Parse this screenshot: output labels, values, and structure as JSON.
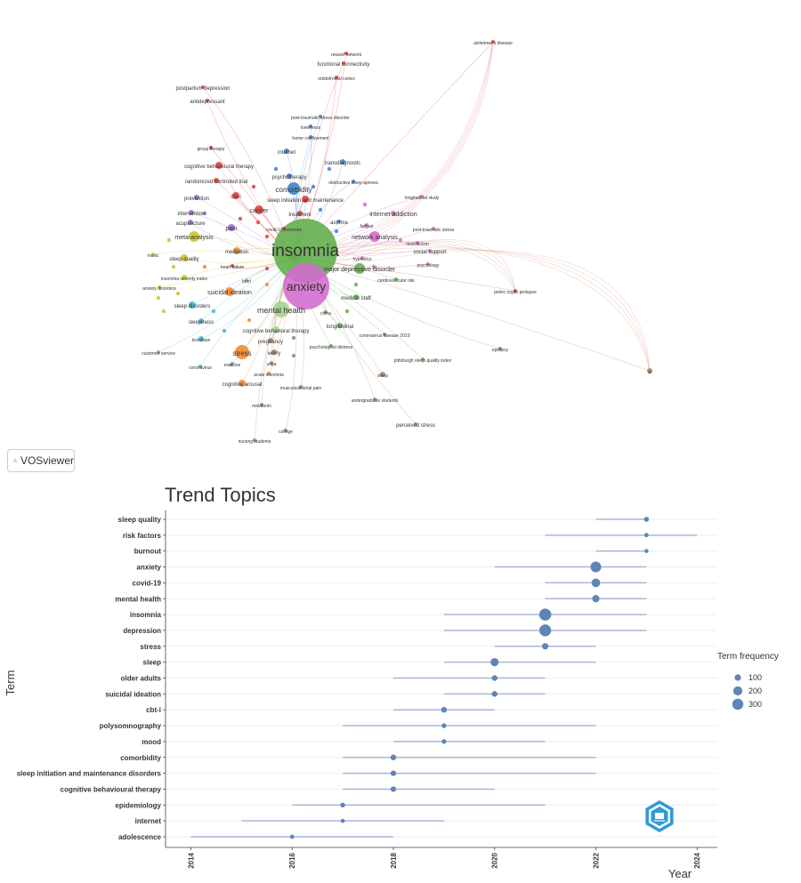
{
  "network": {
    "brand": "VOSviewer",
    "clusters": {
      "red": "#e63b3b",
      "green": "#5fae4a",
      "blue": "#3f7fcc",
      "pink": "#d46ad0",
      "yellow": "#c9c428",
      "purple": "#9a6ad6",
      "cyan": "#43b5d6",
      "orange": "#ef8a2c",
      "brown": "#a8836b",
      "lightgreen": "#9fd48a"
    },
    "labels": [
      "insomnia",
      "anxiety",
      "mental health",
      "comorbidity",
      "network analysis",
      "major depressive disorder",
      "meta-analysis",
      "stress",
      "sleep quality",
      "sleep disorders",
      "suicidal ideation",
      "cancer",
      "cbt-i",
      "internet",
      "pain",
      "mediation",
      "cognitive behavioural therapy",
      "randomized controlled trial",
      "prevention",
      "intervention",
      "acupuncture",
      "insomnia severity index",
      "sleepiness",
      "lockdown",
      "cognitive behavioral therapy",
      "pregnancy",
      "worry",
      "cognitive arousal",
      "melatonin",
      "college",
      "nursing students",
      "exercise",
      "yoga",
      "acute insomnia",
      "coronavirus",
      "customer service",
      "music",
      "anxiety disorders",
      "heart failure",
      "bdnf",
      "sleep initiation and maintenance",
      "psychotherapy",
      "obstructive sleep apnoea",
      "transdiagnostic",
      "home confinement",
      "loneliness",
      "post-traumatic stress disorder",
      "orbitofrontal cortex",
      "functional connectivity",
      "reward network",
      "alzheimer's disease",
      "postpartum depression",
      "antidepressant",
      "group therapy",
      "longitudinal study",
      "internet addiction",
      "post-traumatic stress",
      "neuroticism",
      "social support",
      "psychology",
      "cardiovascular risk",
      "pelvic organ prolapse",
      "medical staff",
      "china",
      "longitudinal",
      "coronavirus disease 2019",
      "psychological distress",
      "pittsburgh sleep quality index",
      "epilepsy",
      "undergraduate students",
      "perceived stress",
      "musculoskeletal pain",
      "treatment",
      "asthma",
      "covid-19 insomnia",
      "hypnotics",
      "fatigue",
      "sleep",
      "ai"
    ]
  },
  "chart_data": {
    "type": "scatter",
    "title": "Trend Topics",
    "xlabel": "Year",
    "ylabel": "Term",
    "xlim": [
      2013.5,
      2024.4
    ],
    "xticks": [
      2014,
      2016,
      2018,
      2020,
      2022,
      2024
    ],
    "point_color": "#5f84b8",
    "line_color": "#aab6da",
    "terms": [
      {
        "term": "sleep quality",
        "q1": 2022,
        "median": 2023,
        "q3": 2023,
        "freq": 60
      },
      {
        "term": "risk factors",
        "q1": 2021,
        "median": 2023,
        "q3": 2024,
        "freq": 45
      },
      {
        "term": "burnout",
        "q1": 2022,
        "median": 2023,
        "q3": 2023,
        "freq": 40
      },
      {
        "term": "anxiety",
        "q1": 2020,
        "median": 2022,
        "q3": 2023,
        "freq": 280
      },
      {
        "term": "covid-19",
        "q1": 2021,
        "median": 2022,
        "q3": 2023,
        "freq": 180
      },
      {
        "term": "mental health",
        "q1": 2021,
        "median": 2022,
        "q3": 2023,
        "freq": 130
      },
      {
        "term": "insomnia",
        "q1": 2019,
        "median": 2021,
        "q3": 2023,
        "freq": 350
      },
      {
        "term": "depression",
        "q1": 2019,
        "median": 2021,
        "q3": 2023,
        "freq": 340
      },
      {
        "term": "stress",
        "q1": 2020,
        "median": 2021,
        "q3": 2022,
        "freq": 100
      },
      {
        "term": "sleep",
        "q1": 2019,
        "median": 2020,
        "q3": 2022,
        "freq": 160
      },
      {
        "term": "older adults",
        "q1": 2018,
        "median": 2020,
        "q3": 2021,
        "freq": 80
      },
      {
        "term": "suicidal ideation",
        "q1": 2019,
        "median": 2020,
        "q3": 2021,
        "freq": 80
      },
      {
        "term": "cbt-i",
        "q1": 2018,
        "median": 2019,
        "q3": 2020,
        "freq": 80
      },
      {
        "term": "polysomnography",
        "q1": 2017,
        "median": 2019,
        "q3": 2022,
        "freq": 55
      },
      {
        "term": "mood",
        "q1": 2018,
        "median": 2019,
        "q3": 2021,
        "freq": 55
      },
      {
        "term": "comorbidity",
        "q1": 2017,
        "median": 2018,
        "q3": 2022,
        "freq": 80
      },
      {
        "term": "sleep initiation and maintenance disorders",
        "q1": 2017,
        "median": 2018,
        "q3": 2022,
        "freq": 75
      },
      {
        "term": "cognitive behavioural therapy",
        "q1": 2017,
        "median": 2018,
        "q3": 2020,
        "freq": 75
      },
      {
        "term": "epidemiology",
        "q1": 2016,
        "median": 2017,
        "q3": 2021,
        "freq": 55
      },
      {
        "term": "internet",
        "q1": 2015,
        "median": 2017,
        "q3": 2019,
        "freq": 40
      },
      {
        "term": "adolescence",
        "q1": 2014,
        "median": 2016,
        "q3": 2018,
        "freq": 45
      }
    ],
    "legend": {
      "title": "Term frequency",
      "position": "right",
      "sizes": [
        100,
        200,
        300
      ],
      "labels": [
        "100",
        "200",
        "300"
      ]
    },
    "grid": true
  }
}
